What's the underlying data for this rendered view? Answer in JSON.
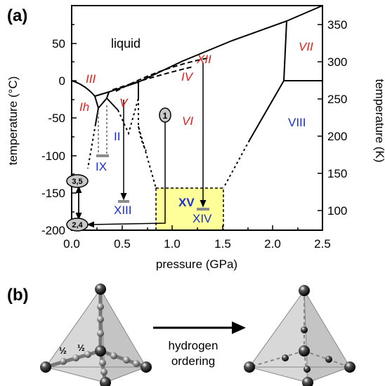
{
  "panel_a": {
    "label": "(a)",
    "x_axis": {
      "title": "pressure (GPa)",
      "ticks": [
        "0.0",
        "0.5",
        "1.0",
        "1.5",
        "2.0",
        "2.5"
      ]
    },
    "y_axis_left": {
      "title": "temperature (°C)",
      "ticks": [
        "50",
        "0",
        "-50",
        "-100",
        "-150",
        "-200"
      ]
    },
    "y_axis_right": {
      "title": "temperature (K)",
      "ticks": [
        "350",
        "300",
        "250",
        "200",
        "150",
        "100"
      ]
    },
    "phases": {
      "liquid": "liquid",
      "Ih": "Ih",
      "III": "III",
      "V": "V",
      "VI": "VI",
      "IV": "IV",
      "XII": "XII",
      "VII": "VII",
      "VIII": "VIII",
      "II": "II",
      "IX": "IX",
      "XIII": "XIII",
      "XV": "XV",
      "XIV": "XIV"
    },
    "markers": {
      "m1": "1",
      "m35": "3,5",
      "m24": "2,4"
    },
    "colors": {
      "red_label": "#e0201b",
      "blue_label": "#1a2fd0",
      "xv_box": "#ffff99",
      "grey_bar": "#8c8c8c",
      "marker_fill": "#c8c8c8"
    }
  },
  "panel_b": {
    "label": "(b)",
    "arrow_text_1": "hydrogen",
    "arrow_text_2": "ordering",
    "half_1": "½",
    "half_2": "½"
  }
}
